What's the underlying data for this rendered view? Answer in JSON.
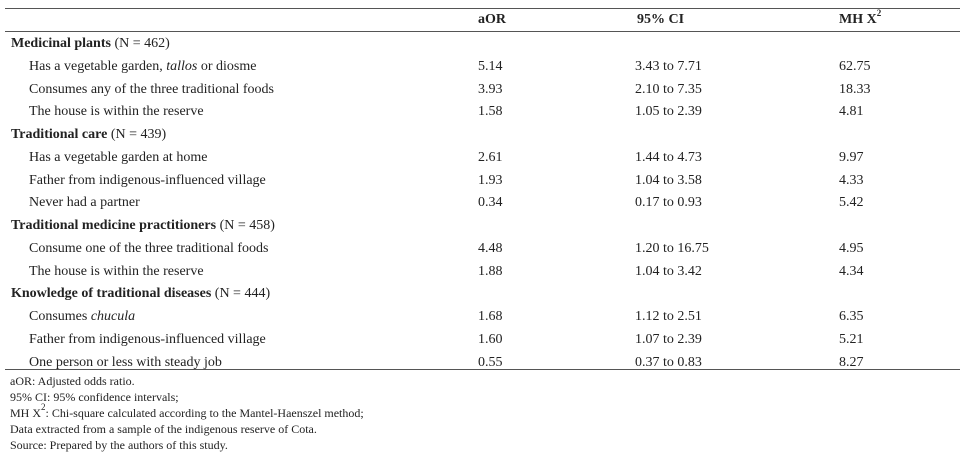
{
  "header": {
    "col_aor": "aOR",
    "col_ci": "95% CI",
    "col_mh": "MH X",
    "col_mh_sup": "2"
  },
  "rows": [
    {
      "type": "group",
      "title": "Medicinal plants",
      "n": " (N = 462)"
    },
    {
      "type": "item",
      "pre": "Has a vegetable garden, ",
      "em": "tallos",
      "post": " or diosme",
      "aor": "5.14",
      "ci": "3.43 to 7.71",
      "mh": "62.75"
    },
    {
      "type": "item",
      "pre": "Consumes any of the three traditional foods",
      "aor": "3.93",
      "ci": "2.10 to 7.35",
      "mh": "18.33"
    },
    {
      "type": "item",
      "pre": "The house is within the reserve",
      "aor": "1.58",
      "ci": "1.05 to 2.39",
      "mh": "4.81"
    },
    {
      "type": "group",
      "title": "Traditional care",
      "n": " (N = 439)"
    },
    {
      "type": "item",
      "pre": "Has a vegetable garden at home",
      "aor": "2.61",
      "ci": "1.44 to 4.73",
      "mh": "9.97"
    },
    {
      "type": "item",
      "pre": "Father from indigenous-influenced village",
      "aor": "1.93",
      "ci": "1.04 to 3.58",
      "mh": "4.33"
    },
    {
      "type": "item",
      "pre": "Never had a partner",
      "aor": "0.34",
      "ci": "0.17 to 0.93",
      "mh": "5.42"
    },
    {
      "type": "group",
      "title": "Traditional medicine practitioners",
      "n": " (N = 458)"
    },
    {
      "type": "item",
      "pre": "Consume one of the three traditional foods",
      "aor": "4.48",
      "ci": "1.20 to 16.75",
      "mh": "4.95"
    },
    {
      "type": "item",
      "pre": "The house is within the reserve",
      "aor": "1.88",
      "ci": "1.04 to 3.42",
      "mh": "4.34"
    },
    {
      "type": "group",
      "title": "Knowledge of traditional diseases",
      "n": " (N = 444)"
    },
    {
      "type": "item",
      "pre": "Consumes ",
      "em": "chucula",
      "post": "",
      "aor": "1.68",
      "ci": "1.12 to 2.51",
      "mh": "6.35"
    },
    {
      "type": "item",
      "pre": "Father from indigenous-influenced village",
      "aor": "1.60",
      "ci": "1.07 to 2.39",
      "mh": "5.21"
    },
    {
      "type": "item",
      "pre": "One person or less with steady job",
      "aor": "0.55",
      "ci": "0.37 to 0.83",
      "mh": "8.27"
    }
  ],
  "notes": {
    "line1": "aOR: Adjusted odds ratio.",
    "line2": "95% CI: 95% confidence intervals;",
    "line3_pre": "MH X",
    "line3_sup": "2",
    "line3_post": ": Chi-square calculated according to the Mantel-Haenszel method;",
    "line4": "Data extracted from a sample of the indigenous reserve of Cota.",
    "line5": "Source: Prepared by the authors of this study."
  }
}
